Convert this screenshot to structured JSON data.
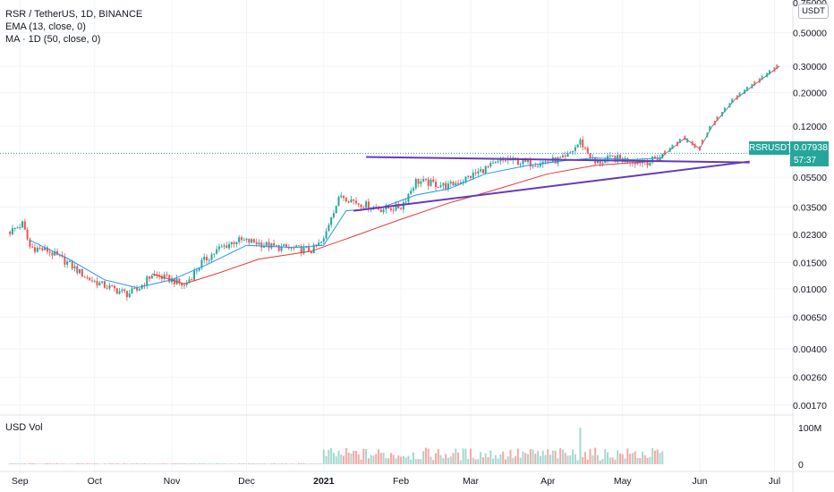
{
  "legend": {
    "symbol_line": "RSR / TetherUS, 1D, BINANCE",
    "ema_line": "EMA (13, close, 0)",
    "ma_line": "MA · 1D (50, close, 0)"
  },
  "volume_pane": {
    "label": "USD Vol",
    "ticks": [
      "100M",
      "0"
    ]
  },
  "price_axis": {
    "unit_badge": "USDT",
    "top_partial": "0.75000",
    "ticks": [
      "0.50000",
      "0.30000",
      "0.20000",
      "0.12000",
      "0.05500",
      "0.03500",
      "0.02300",
      "0.01500",
      "0.01000",
      "0.00650",
      "0.00400",
      "0.00260",
      "0.00170"
    ]
  },
  "time_axis": {
    "ticks": [
      "Sep",
      "Oct",
      "Nov",
      "Dec",
      "2021",
      "Feb",
      "Mar",
      "Apr",
      "May",
      "Jun",
      "Jul"
    ]
  },
  "last_price": {
    "symbol_tag": "RSRUSDT",
    "price": "0.07938",
    "countdown": "57:37"
  },
  "colors": {
    "up": "#26a69a",
    "down": "#ef5350",
    "ema": "#2196f3",
    "ma": "#e53935",
    "trendline": "#673ab7",
    "projection": "#5d606b"
  },
  "chart_data": {
    "type": "candlestick",
    "y_scale": "log",
    "x_range": [
      "2020-08-24",
      "2021-07-08"
    ],
    "y_range": [
      0.0015,
      0.78
    ],
    "price_path": [
      [
        "2020-08-28",
        0.024
      ],
      [
        "2020-09-02",
        0.027
      ],
      [
        "2020-09-05",
        0.019
      ],
      [
        "2020-09-12",
        0.018
      ],
      [
        "2020-09-20",
        0.015
      ],
      [
        "2020-09-28",
        0.0118
      ],
      [
        "2020-10-05",
        0.0105
      ],
      [
        "2020-10-14",
        0.0093
      ],
      [
        "2020-10-18",
        0.0098
      ],
      [
        "2020-10-24",
        0.0125
      ],
      [
        "2020-11-01",
        0.0115
      ],
      [
        "2020-11-06",
        0.0105
      ],
      [
        "2020-11-13",
        0.015
      ],
      [
        "2020-11-20",
        0.0185
      ],
      [
        "2020-11-27",
        0.021
      ],
      [
        "2020-12-04",
        0.0205
      ],
      [
        "2020-12-12",
        0.019
      ],
      [
        "2020-12-20",
        0.0185
      ],
      [
        "2020-12-27",
        0.018
      ],
      [
        "2021-01-01",
        0.021
      ],
      [
        "2021-01-04",
        0.031
      ],
      [
        "2021-01-08",
        0.042
      ],
      [
        "2021-01-15",
        0.037
      ],
      [
        "2021-01-24",
        0.034
      ],
      [
        "2021-02-01",
        0.035
      ],
      [
        "2021-02-07",
        0.052
      ],
      [
        "2021-02-14",
        0.05
      ],
      [
        "2021-02-20",
        0.048
      ],
      [
        "2021-02-28",
        0.055
      ],
      [
        "2021-03-07",
        0.063
      ],
      [
        "2021-03-15",
        0.072
      ],
      [
        "2021-03-24",
        0.068
      ],
      [
        "2021-04-01",
        0.07
      ],
      [
        "2021-04-08",
        0.073
      ],
      [
        "2021-04-14",
        0.095
      ],
      [
        "2021-04-20",
        0.068
      ],
      [
        "2021-04-27",
        0.074
      ],
      [
        "2021-05-04",
        0.071
      ],
      [
        "2021-05-12",
        0.07
      ],
      [
        "2021-05-17",
        0.076
      ]
    ],
    "projection_path": [
      [
        "2021-05-17",
        0.076
      ],
      [
        "2021-05-26",
        0.1
      ],
      [
        "2021-06-01",
        0.085
      ],
      [
        "2021-06-06",
        0.12
      ],
      [
        "2021-06-15",
        0.18
      ],
      [
        "2021-06-25",
        0.24
      ],
      [
        "2021-07-03",
        0.3
      ]
    ],
    "ema_13": [
      [
        "2020-09-05",
        0.021
      ],
      [
        "2020-09-20",
        0.016
      ],
      [
        "2020-10-05",
        0.0115
      ],
      [
        "2020-10-18",
        0.0102
      ],
      [
        "2020-11-01",
        0.0115
      ],
      [
        "2020-11-15",
        0.0145
      ],
      [
        "2020-12-01",
        0.0195
      ],
      [
        "2020-12-20",
        0.0188
      ],
      [
        "2021-01-01",
        0.0195
      ],
      [
        "2021-01-10",
        0.033
      ],
      [
        "2021-01-24",
        0.0345
      ],
      [
        "2021-02-07",
        0.042
      ],
      [
        "2021-02-20",
        0.046
      ],
      [
        "2021-03-07",
        0.058
      ],
      [
        "2021-03-24",
        0.066
      ],
      [
        "2021-04-08",
        0.071
      ],
      [
        "2021-04-20",
        0.074
      ],
      [
        "2021-05-04",
        0.072
      ],
      [
        "2021-05-17",
        0.074
      ]
    ],
    "ma_50": [
      [
        "2020-10-24",
        0.0126
      ],
      [
        "2020-11-06",
        0.0108
      ],
      [
        "2020-11-20",
        0.0128
      ],
      [
        "2020-12-06",
        0.0158
      ],
      [
        "2020-12-27",
        0.0178
      ],
      [
        "2021-01-15",
        0.023
      ],
      [
        "2021-02-01",
        0.029
      ],
      [
        "2021-02-20",
        0.037
      ],
      [
        "2021-03-10",
        0.045
      ],
      [
        "2021-04-01",
        0.058
      ],
      [
        "2021-04-20",
        0.066
      ],
      [
        "2021-05-17",
        0.071
      ]
    ],
    "trendlines": [
      {
        "from": [
          "2021-01-18",
          0.075
        ],
        "to": [
          "2021-06-21",
          0.069
        ]
      },
      {
        "from": [
          "2021-01-13",
          0.033
        ],
        "to": [
          "2021-06-21",
          0.07
        ]
      }
    ],
    "volume": {
      "peak_date": "2021-04-14",
      "peak_value": 100000000,
      "active_from": "2021-01-01"
    }
  }
}
